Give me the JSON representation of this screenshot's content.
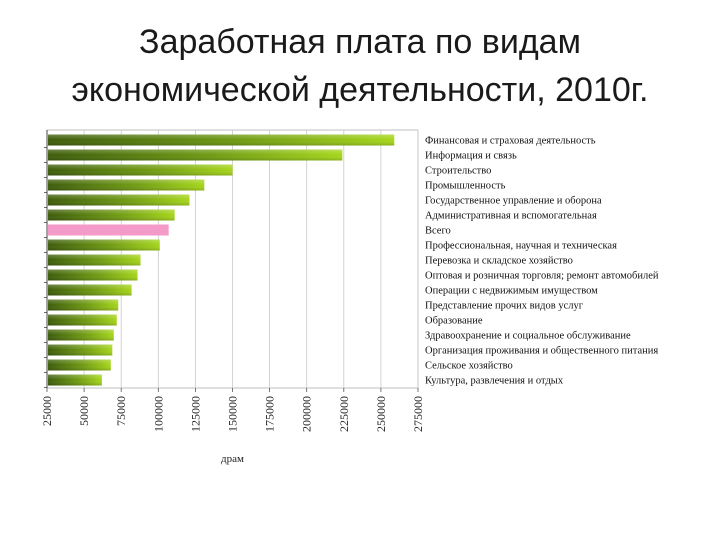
{
  "slide": {
    "title_line1": "Заработная плата по видам",
    "title_line2": "экономической деятельности, 2010г."
  },
  "chart_data": {
    "type": "bar",
    "orientation": "horizontal",
    "title": "",
    "xlabel": "драм",
    "ylabel": "",
    "xlim": [
      25000,
      275000
    ],
    "xticks": [
      25000,
      50000,
      75000,
      100000,
      125000,
      150000,
      175000,
      200000,
      225000,
      250000,
      275000
    ],
    "grid": "vertical",
    "legend": "right",
    "colors": {
      "bar_dark": "#3d5c0a",
      "bar_light": "#a6d61a",
      "highlight": "#f49ac8",
      "grid": "#c8c8c8"
    },
    "highlight_category": "Всего",
    "categories": [
      "Финансовая и страховая деятельность",
      "Информация и связь",
      "Строительство",
      "Промышленность",
      "Государственное управление и оборона",
      "Административная и вспомогательная",
      "Всего",
      "Профессиональная, научная и техническая",
      "Перевозка и складское хозяйство",
      "Оптовая и розничная торговля; ремонт автомобилей",
      "Операции с недвижимым имуществом",
      "Представление прочих видов услуг",
      "Образование",
      "Здравоохранение и социальное обслуживание",
      "Организация проживания и общественного питания",
      "Сельское хозяйство",
      "Культура, развлечения и отдых"
    ],
    "values": [
      259000,
      224000,
      150000,
      131000,
      121000,
      111000,
      107000,
      101000,
      88000,
      86000,
      82000,
      73000,
      72000,
      70000,
      69000,
      68000,
      62000
    ]
  }
}
